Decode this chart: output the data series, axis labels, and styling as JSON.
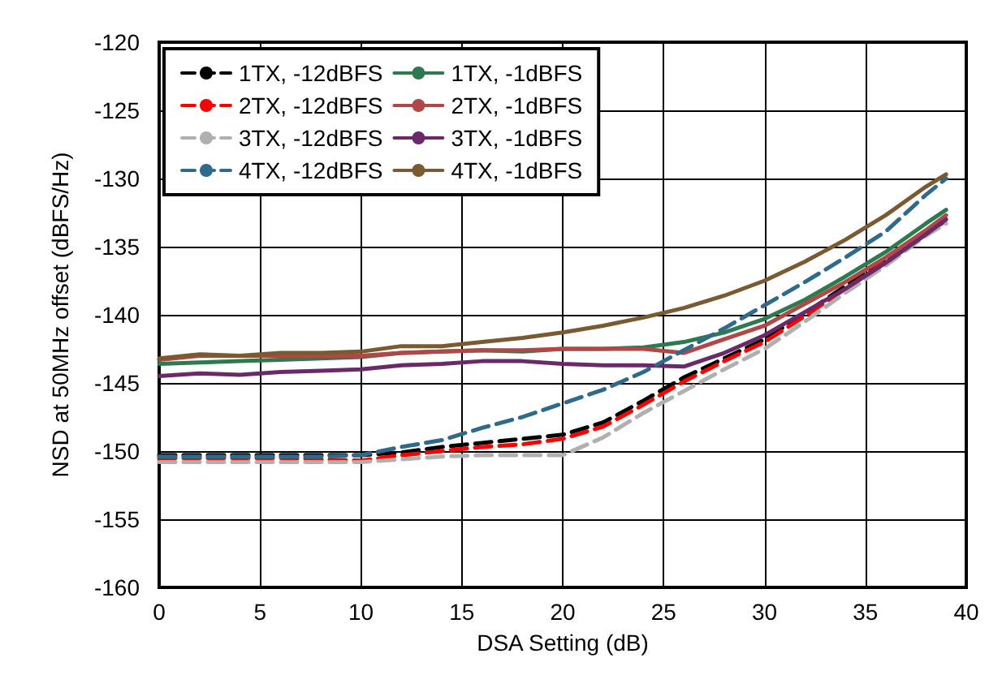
{
  "chart_data": {
    "type": "line",
    "xlabel": "DSA Setting (dB)",
    "ylabel": "NSD at 50MHz offset (dBFS/Hz)",
    "x": [
      0,
      2,
      4,
      6,
      8,
      10,
      12,
      14,
      16,
      18,
      20,
      22,
      24,
      26,
      28,
      30,
      32,
      34,
      36,
      38,
      39
    ],
    "xlim": [
      0,
      40
    ],
    "xticks": [
      0,
      5,
      10,
      15,
      20,
      25,
      30,
      35,
      40
    ],
    "ylim": [
      -160,
      -120
    ],
    "yticks": [
      -160,
      -155,
      -150,
      -145,
      -140,
      -135,
      -130,
      -125,
      -120
    ],
    "grid": true,
    "legend": "top left",
    "marker": "none",
    "series": [
      {
        "name": "1TX, -12dBFS",
        "color": "#000000",
        "line_style": "dashed",
        "values": [
          -150.3,
          -150.3,
          -150.3,
          -150.3,
          -150.3,
          -150.3,
          -150.1,
          -149.7,
          -149.4,
          -149.1,
          -148.8,
          -147.9,
          -146.3,
          -144.6,
          -143.2,
          -141.8,
          -139.9,
          -137.9,
          -135.9,
          -133.8,
          -132.9
        ]
      },
      {
        "name": "1TX, -1dBFS",
        "color": "#2e7a50",
        "line_style": "solid",
        "values": [
          -143.6,
          -143.5,
          -143.4,
          -143.3,
          -143.2,
          -143.1,
          -142.8,
          -142.7,
          -142.6,
          -142.7,
          -142.5,
          -142.5,
          -142.4,
          -142.0,
          -141.3,
          -140.3,
          -138.9,
          -137.2,
          -135.4,
          -133.3,
          -132.3
        ]
      },
      {
        "name": "2TX, -12dBFS",
        "color": "#ff0000",
        "line_style": "dashed",
        "values": [
          -150.5,
          -150.5,
          -150.5,
          -150.5,
          -150.6,
          -150.7,
          -150.3,
          -150.0,
          -149.7,
          -149.5,
          -149.1,
          -148.2,
          -146.6,
          -144.9,
          -143.4,
          -142.0,
          -140.1,
          -138.1,
          -136.1,
          -134.0,
          -133.1
        ]
      },
      {
        "name": "2TX, -1dBFS",
        "color": "#b04848",
        "line_style": "solid",
        "values": [
          -143.3,
          -143.0,
          -143.0,
          -143.0,
          -143.0,
          -143.0,
          -142.8,
          -142.7,
          -142.6,
          -142.6,
          -142.5,
          -142.5,
          -142.5,
          -142.8,
          -141.8,
          -140.8,
          -139.2,
          -137.6,
          -135.8,
          -133.8,
          -132.7
        ]
      },
      {
        "name": "3TX, -12dBFS",
        "color": "#b0b0b0",
        "line_style": "dashed",
        "values": [
          -150.8,
          -150.8,
          -150.8,
          -150.8,
          -150.8,
          -150.8,
          -150.6,
          -150.4,
          -150.3,
          -150.3,
          -150.3,
          -149.0,
          -147.2,
          -145.6,
          -144.0,
          -142.5,
          -140.5,
          -138.4,
          -136.4,
          -134.2,
          -133.3
        ]
      },
      {
        "name": "3TX, -1dBFS",
        "color": "#6a2a6a",
        "line_style": "solid",
        "values": [
          -144.5,
          -144.3,
          -144.4,
          -144.2,
          -144.1,
          -144.0,
          -143.7,
          -143.6,
          -143.4,
          -143.4,
          -143.6,
          -143.7,
          -143.7,
          -143.8,
          -142.8,
          -141.5,
          -139.8,
          -138.1,
          -136.2,
          -134.1,
          -133.0
        ]
      },
      {
        "name": "4TX, -12dBFS",
        "color": "#2e6a8a",
        "line_style": "dashed",
        "values": [
          -150.4,
          -150.4,
          -150.4,
          -150.4,
          -150.4,
          -150.3,
          -149.7,
          -149.2,
          -148.3,
          -147.5,
          -146.5,
          -145.5,
          -144.2,
          -142.6,
          -141.0,
          -139.3,
          -137.6,
          -135.8,
          -133.9,
          -131.2,
          -130.0
        ]
      },
      {
        "name": "4TX, -1dBFS",
        "color": "#7a5a30",
        "line_style": "solid",
        "values": [
          -143.2,
          -142.9,
          -143.0,
          -142.8,
          -142.8,
          -142.7,
          -142.3,
          -142.3,
          -142.0,
          -141.7,
          -141.3,
          -140.8,
          -140.2,
          -139.5,
          -138.6,
          -137.5,
          -136.1,
          -134.5,
          -132.7,
          -130.6,
          -129.7
        ]
      }
    ]
  }
}
